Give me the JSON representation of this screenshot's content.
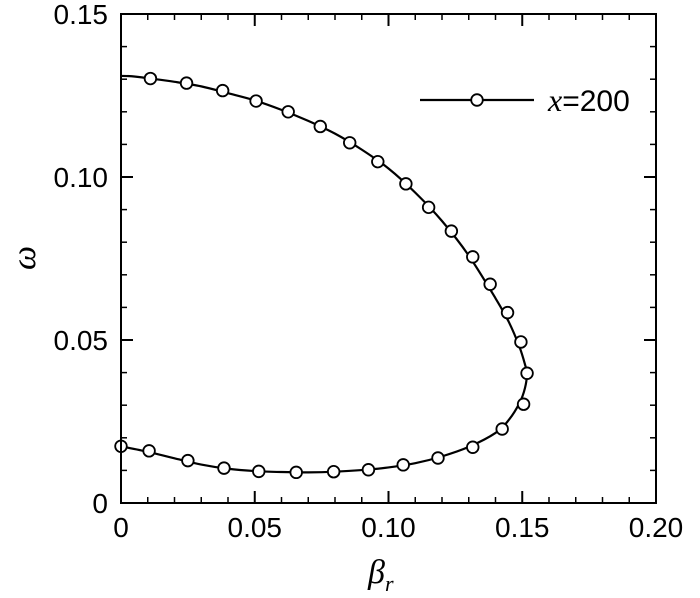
{
  "chart_data": {
    "type": "line",
    "xlabel": "β",
    "xlabel_sub": "r",
    "ylabel": "ω",
    "xlim": [
      0,
      0.2
    ],
    "ylim": [
      0,
      0.15
    ],
    "x_ticks": [
      0,
      0.05,
      0.1,
      0.15,
      0.2
    ],
    "x_tick_labels": [
      "0",
      "0.05",
      "0.10",
      "0.15",
      "0.20"
    ],
    "y_ticks": [
      0,
      0.05,
      0.1,
      0.15
    ],
    "y_tick_labels": [
      "0",
      "0.05",
      "0.10",
      "0.15"
    ],
    "grid": false,
    "legend_position": "top-right",
    "series": [
      {
        "name": "x=200",
        "name_var": "x",
        "name_value": "=200",
        "marker": "open-circle",
        "color": "#000000",
        "curve": [
          {
            "x": 0.0,
            "y": 0.131
          },
          {
            "x": 0.004,
            "y": 0.1309
          },
          {
            "x": 0.011,
            "y": 0.1302
          },
          {
            "x": 0.02,
            "y": 0.1292
          },
          {
            "x": 0.03,
            "y": 0.1278
          },
          {
            "x": 0.04,
            "y": 0.1257
          },
          {
            "x": 0.05,
            "y": 0.1235
          },
          {
            "x": 0.06,
            "y": 0.1206
          },
          {
            "x": 0.07,
            "y": 0.1172
          },
          {
            "x": 0.08,
            "y": 0.1133
          },
          {
            "x": 0.09,
            "y": 0.1084
          },
          {
            "x": 0.1,
            "y": 0.1026
          },
          {
            "x": 0.11,
            "y": 0.0952
          },
          {
            "x": 0.12,
            "y": 0.0865
          },
          {
            "x": 0.13,
            "y": 0.0759
          },
          {
            "x": 0.14,
            "y": 0.0628
          },
          {
            "x": 0.145,
            "y": 0.0555
          },
          {
            "x": 0.149,
            "y": 0.0478
          },
          {
            "x": 0.1512,
            "y": 0.042
          },
          {
            "x": 0.1518,
            "y": 0.0398
          },
          {
            "x": 0.151,
            "y": 0.0352
          },
          {
            "x": 0.149,
            "y": 0.0307
          },
          {
            "x": 0.145,
            "y": 0.0255
          },
          {
            "x": 0.14,
            "y": 0.0215
          },
          {
            "x": 0.13,
            "y": 0.0172
          },
          {
            "x": 0.12,
            "y": 0.0143
          },
          {
            "x": 0.11,
            "y": 0.0122
          },
          {
            "x": 0.1,
            "y": 0.0109
          },
          {
            "x": 0.09,
            "y": 0.0101
          },
          {
            "x": 0.08,
            "y": 0.0096
          },
          {
            "x": 0.07,
            "y": 0.0094
          },
          {
            "x": 0.06,
            "y": 0.0095
          },
          {
            "x": 0.05,
            "y": 0.0098
          },
          {
            "x": 0.04,
            "y": 0.0105
          },
          {
            "x": 0.03,
            "y": 0.0118
          },
          {
            "x": 0.02,
            "y": 0.0137
          },
          {
            "x": 0.01,
            "y": 0.0157
          },
          {
            "x": 0.0,
            "y": 0.0174
          }
        ],
        "markers": [
          {
            "x": 0.011,
            "y": 0.1302
          },
          {
            "x": 0.0245,
            "y": 0.1288
          },
          {
            "x": 0.038,
            "y": 0.1265
          },
          {
            "x": 0.0505,
            "y": 0.1233
          },
          {
            "x": 0.0625,
            "y": 0.12
          },
          {
            "x": 0.0745,
            "y": 0.1155
          },
          {
            "x": 0.0855,
            "y": 0.1105
          },
          {
            "x": 0.096,
            "y": 0.1047
          },
          {
            "x": 0.1065,
            "y": 0.0979
          },
          {
            "x": 0.115,
            "y": 0.0907
          },
          {
            "x": 0.1235,
            "y": 0.0834
          },
          {
            "x": 0.1315,
            "y": 0.0755
          },
          {
            "x": 0.138,
            "y": 0.0671
          },
          {
            "x": 0.1445,
            "y": 0.0584
          },
          {
            "x": 0.1495,
            "y": 0.0494
          },
          {
            "x": 0.1518,
            "y": 0.0398
          },
          {
            "x": 0.1505,
            "y": 0.0303
          },
          {
            "x": 0.1425,
            "y": 0.0227
          },
          {
            "x": 0.1315,
            "y": 0.0171
          },
          {
            "x": 0.1185,
            "y": 0.0138
          },
          {
            "x": 0.1055,
            "y": 0.0117
          },
          {
            "x": 0.0925,
            "y": 0.0102
          },
          {
            "x": 0.0795,
            "y": 0.0096
          },
          {
            "x": 0.0655,
            "y": 0.0094
          },
          {
            "x": 0.0515,
            "y": 0.0097
          },
          {
            "x": 0.0385,
            "y": 0.0107
          },
          {
            "x": 0.025,
            "y": 0.013
          },
          {
            "x": 0.0105,
            "y": 0.016
          },
          {
            "x": 0.0,
            "y": 0.0174
          }
        ]
      }
    ]
  }
}
